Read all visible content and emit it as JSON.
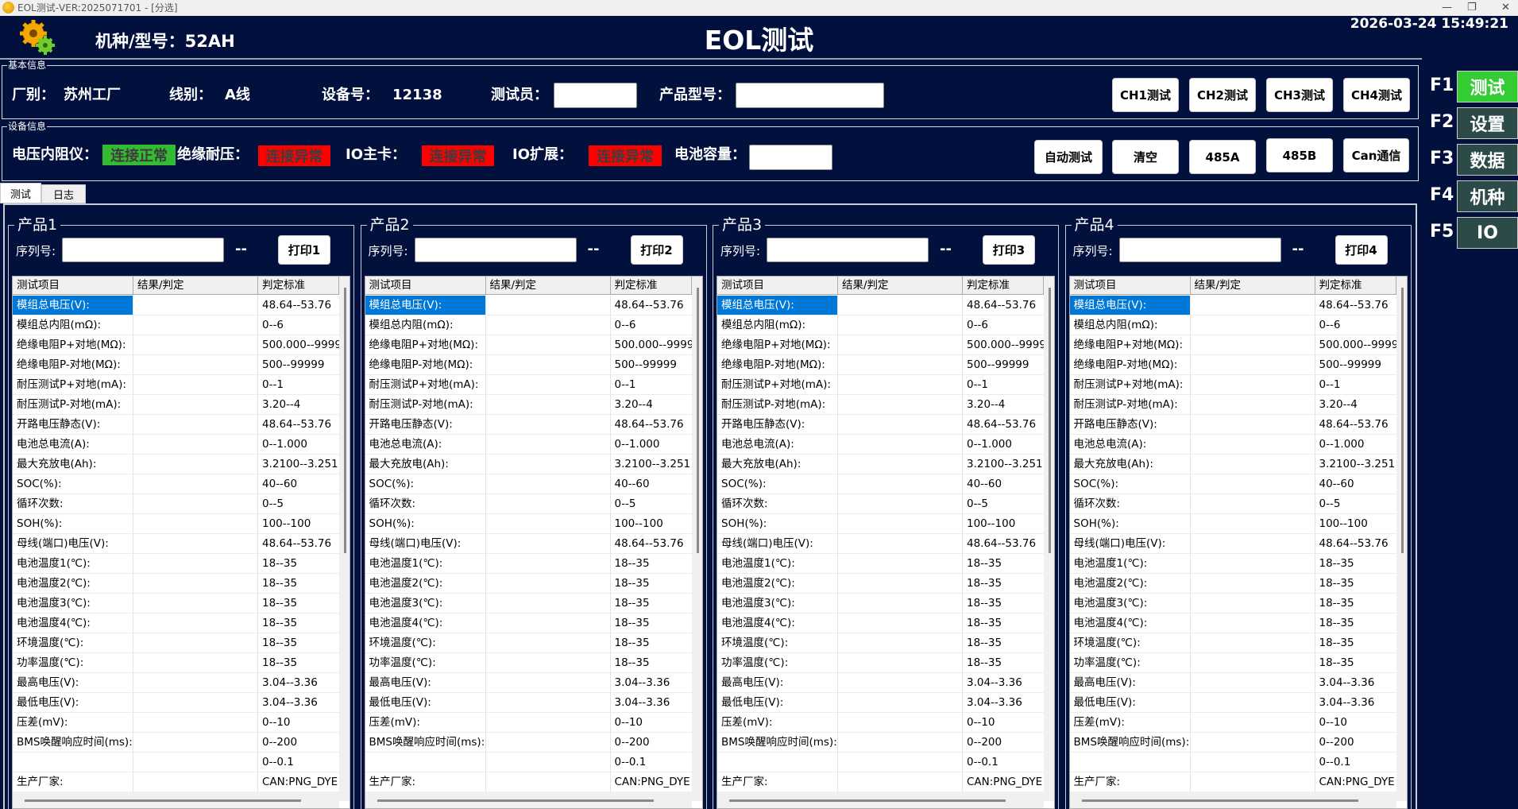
{
  "window": {
    "title": "EOL测试-VER:2025071701 - [分选]"
  },
  "header": {
    "model_label": "机种/型号：52AH",
    "title": "EOL测试",
    "datetime": "2026-03-24 15:49:21"
  },
  "basic_info": {
    "legend": "基本信息",
    "factory_label": "厂别：",
    "factory_value": "苏州工厂",
    "line_label": "线别：",
    "line_value": "A线",
    "device_label": "设备号：",
    "device_value": "12138",
    "tester_label": "测试员：",
    "tester_value": "",
    "product_model_label": "产品型号：",
    "product_model_value": "",
    "buttons": [
      "CH1测试",
      "CH2测试",
      "CH3测试",
      "CH4测试"
    ]
  },
  "device_info": {
    "legend": "设备信息",
    "voltage_meter_label": "电压内阻仪：",
    "voltage_meter_status": "连接正常",
    "insulation_label": "绝缘耐压：",
    "insulation_status": "连接异常",
    "io_main_label": "IO主卡：",
    "io_main_status": "连接异常",
    "io_ext_label": "IO扩展：",
    "io_ext_status": "连接异常",
    "capacity_label": "电池容量：",
    "capacity_value": "",
    "buttons": [
      "自动测试",
      "清空",
      "485A",
      "485B",
      "Can通信"
    ],
    "colors": {
      "ok": "#33bb33",
      "error": "#ff0000"
    }
  },
  "tabs": [
    {
      "label": "测试",
      "active": true
    },
    {
      "label": "日志",
      "active": false
    }
  ],
  "function_keys": [
    {
      "key": "F1",
      "label": "测试",
      "active": true
    },
    {
      "key": "F2",
      "label": "设置",
      "active": false
    },
    {
      "key": "F3",
      "label": "数据",
      "active": false
    },
    {
      "key": "F4",
      "label": "机种",
      "active": false
    },
    {
      "key": "F5",
      "label": "IO",
      "active": false
    }
  ],
  "function_key_colors": {
    "active": "#33cc33",
    "inactive": "#2c4a47"
  },
  "products": [
    {
      "title": "产品1",
      "serial_label": "序列号:",
      "serial_value": "",
      "status": "--",
      "print_label": "打印1"
    },
    {
      "title": "产品2",
      "serial_label": "序列号:",
      "serial_value": "",
      "status": "--",
      "print_label": "打印2"
    },
    {
      "title": "产品3",
      "serial_label": "序列号:",
      "serial_value": "",
      "status": "--",
      "print_label": "打印3"
    },
    {
      "title": "产品4",
      "serial_label": "序列号:",
      "serial_value": "",
      "status": "--",
      "print_label": "打印4"
    }
  ],
  "table": {
    "columns": [
      "测试项目",
      "结果/判定",
      "判定标准"
    ],
    "selected_row": 0,
    "rows": [
      [
        "模组总电压(V):",
        "",
        "48.64--53.76"
      ],
      [
        "模组总内阻(mΩ):",
        "",
        "0--6"
      ],
      [
        "绝缘电阻P+对地(MΩ):",
        "",
        "500.000--9999"
      ],
      [
        "绝缘电阻P-对地(MΩ):",
        "",
        "500--99999"
      ],
      [
        "耐压测试P+对地(mA):",
        "",
        "0--1"
      ],
      [
        "耐压测试P-对地(mA):",
        "",
        "3.20--4"
      ],
      [
        "开路电压静态(V):",
        "",
        "48.64--53.76"
      ],
      [
        "电池总电流(A):",
        "",
        "0--1.000"
      ],
      [
        "最大充放电(Ah):",
        "",
        "3.2100--3.251"
      ],
      [
        "SOC(%):",
        "",
        "40--60"
      ],
      [
        "循环次数:",
        "",
        "0--5"
      ],
      [
        "SOH(%):",
        "",
        "100--100"
      ],
      [
        "母线(端口)电压(V):",
        "",
        "48.64--53.76"
      ],
      [
        "电池温度1(℃):",
        "",
        "18--35"
      ],
      [
        "电池温度2(℃):",
        "",
        "18--35"
      ],
      [
        "电池温度3(℃):",
        "",
        "18--35"
      ],
      [
        "电池温度4(℃):",
        "",
        "18--35"
      ],
      [
        "环境温度(℃):",
        "",
        "18--35"
      ],
      [
        "功率温度(℃):",
        "",
        "18--35"
      ],
      [
        "最高电压(V):",
        "",
        "3.04--3.36"
      ],
      [
        "最低电压(V):",
        "",
        "3.04--3.36"
      ],
      [
        "压差(mV):",
        "",
        "0--10"
      ],
      [
        "BMS唤醒响应时间(ms):",
        "",
        "0--200"
      ],
      [
        "",
        "",
        "0--0.1"
      ],
      [
        "生产厂家:",
        "",
        "CAN:PNG_DYE"
      ]
    ]
  }
}
